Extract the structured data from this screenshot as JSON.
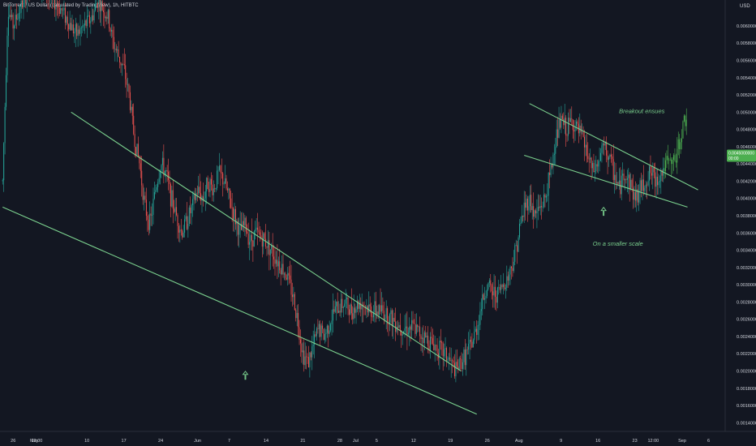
{
  "header": {
    "title": "BitTorrent / US Dollar (calculated by TradingView), 1h, HITBTC",
    "currency": "USD"
  },
  "chart_data": {
    "type": "candlestick",
    "title": "BitTorrent / US Dollar (calculated by TradingView), 1h, HITBTC",
    "ylabel": "USD",
    "ylim": [
      0.0013,
      0.0063
    ],
    "y_ticks": [
      "0.0062000000",
      "0.0060000000",
      "0.0058000000",
      "0.0056000000",
      "0.0054000000",
      "0.0052000000",
      "0.0050000000",
      "0.0048000000",
      "0.0046000000",
      "0.0044000000",
      "0.0042000000",
      "0.0040000000",
      "0.0038000000",
      "0.0036000000",
      "0.0034000000",
      "0.0032000000",
      "0.0030000000",
      "0.0028000000",
      "0.0026000000",
      "0.0024000000",
      "0.0022000000",
      "0.0020000000",
      "0.0018000000",
      "0.0016000000",
      "0.0014000000"
    ],
    "x_ticks": [
      {
        "label": "26",
        "day": 26
      },
      {
        "label": "May",
        "day": 30
      },
      {
        "label": "12:00",
        "day": 30.5
      },
      {
        "label": "10",
        "day": 40
      },
      {
        "label": "17",
        "day": 47
      },
      {
        "label": "24",
        "day": 54
      },
      {
        "label": "Jun",
        "day": 61
      },
      {
        "label": "7",
        "day": 67
      },
      {
        "label": "14",
        "day": 74
      },
      {
        "label": "21",
        "day": 81
      },
      {
        "label": "28",
        "day": 88
      },
      {
        "label": "Jul",
        "day": 91
      },
      {
        "label": "5",
        "day": 95
      },
      {
        "label": "12",
        "day": 102
      },
      {
        "label": "19",
        "day": 109
      },
      {
        "label": "26",
        "day": 116
      },
      {
        "label": "Aug",
        "day": 122
      },
      {
        "label": "9",
        "day": 130
      },
      {
        "label": "16",
        "day": 137
      },
      {
        "label": "23",
        "day": 144
      },
      {
        "label": "12:00",
        "day": 147.5
      },
      {
        "label": "Sep",
        "day": 153
      },
      {
        "label": "6",
        "day": 158
      }
    ],
    "x_range_days": [
      23.5,
      161
    ],
    "x_note": "x values are calendar days counted from Apr 1",
    "price_path": [
      [
        24,
        0.0042
      ],
      [
        25,
        0.0062
      ],
      [
        26,
        0.006
      ],
      [
        28,
        0.0063
      ],
      [
        30,
        0.0066
      ],
      [
        32,
        0.0064
      ],
      [
        35,
        0.0062
      ],
      [
        38,
        0.0059
      ],
      [
        41,
        0.0061
      ],
      [
        42,
        0.0063
      ],
      [
        44,
        0.0061
      ],
      [
        45,
        0.0058
      ],
      [
        47,
        0.0055
      ],
      [
        48,
        0.0052
      ],
      [
        49,
        0.0047
      ],
      [
        50,
        0.0044
      ],
      [
        51,
        0.0039
      ],
      [
        52,
        0.0037
      ],
      [
        53,
        0.0041
      ],
      [
        54,
        0.0044
      ],
      [
        55,
        0.0043
      ],
      [
        56,
        0.004
      ],
      [
        57,
        0.0038
      ],
      [
        58,
        0.0036
      ],
      [
        60,
        0.0039
      ],
      [
        61,
        0.0041
      ],
      [
        62,
        0.004
      ],
      [
        63,
        0.0042
      ],
      [
        64,
        0.0041
      ],
      [
        65,
        0.0043
      ],
      [
        66,
        0.0042
      ],
      [
        67,
        0.004
      ],
      [
        68,
        0.0038
      ],
      [
        69,
        0.0036
      ],
      [
        70,
        0.0037
      ],
      [
        71,
        0.0035
      ],
      [
        72,
        0.0036
      ],
      [
        74,
        0.0035
      ],
      [
        76,
        0.0033
      ],
      [
        78,
        0.0031
      ],
      [
        79,
        0.0029
      ],
      [
        80,
        0.0026
      ],
      [
        81,
        0.0022
      ],
      [
        82,
        0.0021
      ],
      [
        83,
        0.0023
      ],
      [
        84,
        0.0025
      ],
      [
        85,
        0.0024
      ],
      [
        87,
        0.0027
      ],
      [
        89,
        0.0028
      ],
      [
        90,
        0.0027
      ],
      [
        92,
        0.0028
      ],
      [
        94,
        0.0027
      ],
      [
        96,
        0.0027
      ],
      [
        98,
        0.0026
      ],
      [
        100,
        0.0025
      ],
      [
        102,
        0.0025
      ],
      [
        104,
        0.0024
      ],
      [
        106,
        0.0023
      ],
      [
        108,
        0.0022
      ],
      [
        110,
        0.002
      ],
      [
        111,
        0.0021
      ],
      [
        112,
        0.0022
      ],
      [
        113,
        0.0023
      ],
      [
        114,
        0.0025
      ],
      [
        115,
        0.0028
      ],
      [
        116,
        0.003
      ],
      [
        117,
        0.0029
      ],
      [
        118,
        0.0029
      ],
      [
        119,
        0.003
      ],
      [
        120,
        0.0031
      ],
      [
        121,
        0.0033
      ],
      [
        122,
        0.0036
      ],
      [
        123,
        0.0039
      ],
      [
        124,
        0.004
      ],
      [
        125,
        0.0038
      ],
      [
        126,
        0.0039
      ],
      [
        127,
        0.004
      ],
      [
        128,
        0.0043
      ],
      [
        129,
        0.0047
      ],
      [
        130,
        0.0049
      ],
      [
        131,
        0.0048
      ],
      [
        132,
        0.0049
      ],
      [
        133,
        0.0048
      ],
      [
        134,
        0.0047
      ],
      [
        135,
        0.0045
      ],
      [
        136,
        0.0043
      ],
      [
        137,
        0.0044
      ],
      [
        138,
        0.0046
      ],
      [
        139,
        0.0045
      ],
      [
        140,
        0.0043
      ],
      [
        141,
        0.0041
      ],
      [
        142,
        0.0043
      ],
      [
        143,
        0.0042
      ],
      [
        144,
        0.004
      ],
      [
        145,
        0.0041
      ],
      [
        146,
        0.0042
      ],
      [
        147,
        0.0043
      ],
      [
        148,
        0.0042
      ],
      [
        149,
        0.0043
      ],
      [
        150,
        0.0044
      ],
      [
        151,
        0.0044
      ],
      [
        152,
        0.0045
      ],
      [
        153,
        0.0048
      ],
      [
        154,
        0.005
      ]
    ],
    "last_price": "0.0045000000",
    "last_price_sub": "00:00",
    "series_colors": {
      "up": "#26a69a",
      "down": "#ef5350",
      "last_bar": "#4caf50"
    },
    "trendlines": [
      {
        "name": "upper-wedge-line",
        "points": [
          [
            37,
            0.005
          ],
          [
            111,
            0.002
          ]
        ],
        "color": "#7bd18e"
      },
      {
        "name": "lower-wedge-line",
        "points": [
          [
            24,
            0.0039
          ],
          [
            114,
            0.0015
          ]
        ],
        "color": "#7bd18e"
      },
      {
        "name": "small-upper-line",
        "points": [
          [
            124,
            0.0051
          ],
          [
            156,
            0.0041
          ]
        ],
        "color": "#7bd18e"
      },
      {
        "name": "small-lower-line",
        "points": [
          [
            123,
            0.0045
          ],
          [
            154,
            0.0039
          ]
        ],
        "color": "#7bd18e"
      }
    ],
    "annotations": [
      {
        "text": "Breakout ensues",
        "day": 141,
        "price": 0.00499
      },
      {
        "text": "On a smaller scale",
        "day": 136,
        "price": 0.00345
      }
    ],
    "arrows": [
      {
        "name": "arrow-main",
        "day": 70,
        "price": 0.00195
      },
      {
        "name": "arrow-small",
        "day": 138,
        "price": 0.00385
      }
    ],
    "grid": false
  }
}
